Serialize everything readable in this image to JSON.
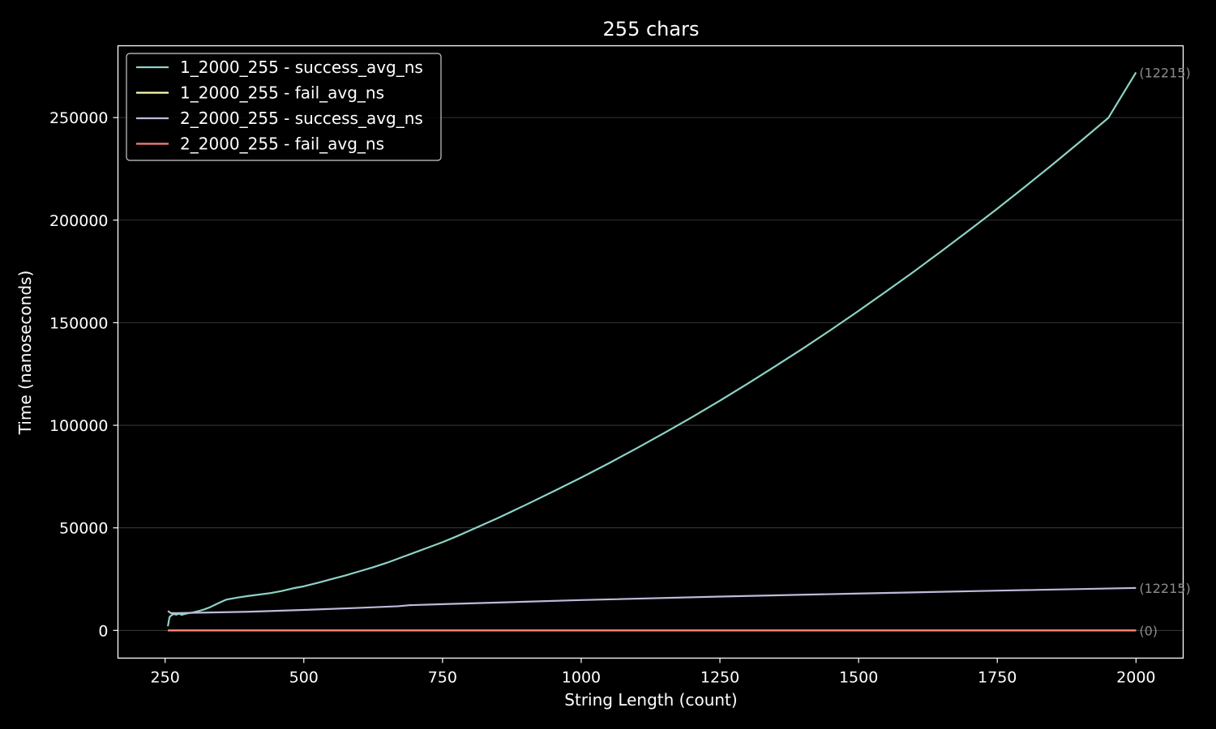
{
  "chart_data": {
    "type": "line",
    "title": "255 chars",
    "xlabel": "String Length (count)",
    "ylabel": "Time (nanoseconds)",
    "xlim": [
      165,
      2085
    ],
    "ylim": [
      -13500,
      285000
    ],
    "xticks": [
      250,
      500,
      750,
      1000,
      1250,
      1500,
      1750,
      2000
    ],
    "xtick_labels": [
      "250",
      "500",
      "750",
      "1000",
      "1250",
      "1500",
      "1750",
      "2000"
    ],
    "yticks": [
      0,
      50000,
      100000,
      150000,
      200000,
      250000
    ],
    "ytick_labels": [
      "0",
      "50000",
      "100000",
      "150000",
      "200000",
      "250000"
    ],
    "grid": "horizontal",
    "legend_position": "top-left",
    "series": [
      {
        "name": "1_2000_255 - success_avg_ns",
        "color": "#8dd3c7",
        "end_label": "(12215)",
        "x": [
          255,
          258,
          262,
          266,
          270,
          275,
          280,
          285,
          290,
          300,
          310,
          320,
          330,
          340,
          350,
          360,
          370,
          380,
          400,
          420,
          440,
          460,
          480,
          500,
          525,
          550,
          575,
          600,
          625,
          650,
          675,
          700,
          725,
          750,
          775,
          800,
          850,
          900,
          950,
          1000,
          1050,
          1100,
          1150,
          1200,
          1250,
          1300,
          1350,
          1400,
          1450,
          1500,
          1550,
          1600,
          1650,
          1700,
          1750,
          1800,
          1850,
          1900,
          1950,
          2000
        ],
        "values": [
          2000,
          6500,
          7500,
          8000,
          7700,
          8200,
          7600,
          8000,
          8300,
          8800,
          9400,
          10200,
          11200,
          12500,
          13800,
          15000,
          15500,
          16000,
          16800,
          17500,
          18200,
          19200,
          20500,
          21500,
          23200,
          25000,
          26800,
          28800,
          30800,
          33000,
          35500,
          38000,
          40500,
          43000,
          45800,
          48800,
          54800,
          61200,
          67800,
          74500,
          81500,
          88800,
          96300,
          104000,
          112000,
          120300,
          128800,
          137500,
          146500,
          155800,
          165300,
          175000,
          185000,
          195200,
          205600,
          216300,
          227200,
          238400,
          249800,
          272000
        ]
      },
      {
        "name": "1_2000_255 - fail_avg_ns",
        "color": "#ffffb3",
        "end_label": "",
        "x": [
          255,
          2000
        ],
        "values": [
          0,
          0
        ]
      },
      {
        "name": "2_2000_255 - success_avg_ns",
        "color": "#bebada",
        "end_label": "(12215)",
        "x": [
          255,
          260,
          270,
          300,
          400,
          500,
          600,
          670,
          690,
          750,
          1000,
          1250,
          1500,
          1750,
          2000
        ],
        "values": [
          9500,
          8500,
          8400,
          8600,
          9100,
          10000,
          11000,
          11800,
          12300,
          12800,
          14800,
          16500,
          18000,
          19400,
          20700
        ]
      },
      {
        "name": "2_2000_255 - fail_avg_ns",
        "color": "#fb8072",
        "end_label": "(0)",
        "x": [
          255,
          2000
        ],
        "values": [
          0,
          0
        ]
      }
    ]
  }
}
